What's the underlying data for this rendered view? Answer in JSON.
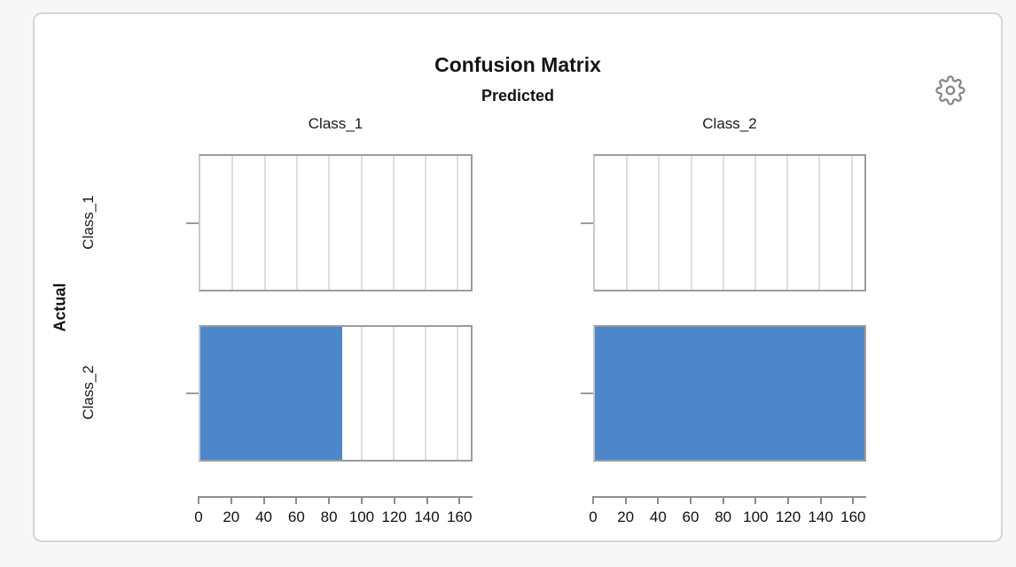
{
  "toolbar": {
    "settings_icon": "gear-icon"
  },
  "chart_data": {
    "type": "bar",
    "orientation": "horizontal",
    "title": "Confusion Matrix",
    "column_axis_title": "Predicted",
    "row_axis_title": "Actual",
    "columns": [
      "Class_1",
      "Class_2"
    ],
    "rows": [
      "Class_1",
      "Class_2"
    ],
    "matrix": [
      [
        0,
        0
      ],
      [
        88,
        168
      ]
    ],
    "xlim": [
      0,
      168
    ],
    "x_ticks": [
      0,
      20,
      40,
      60,
      80,
      100,
      120,
      140,
      160
    ],
    "bar_color": "#4d87c9",
    "grid": "vertical-gridlines-on",
    "legend": "none"
  }
}
